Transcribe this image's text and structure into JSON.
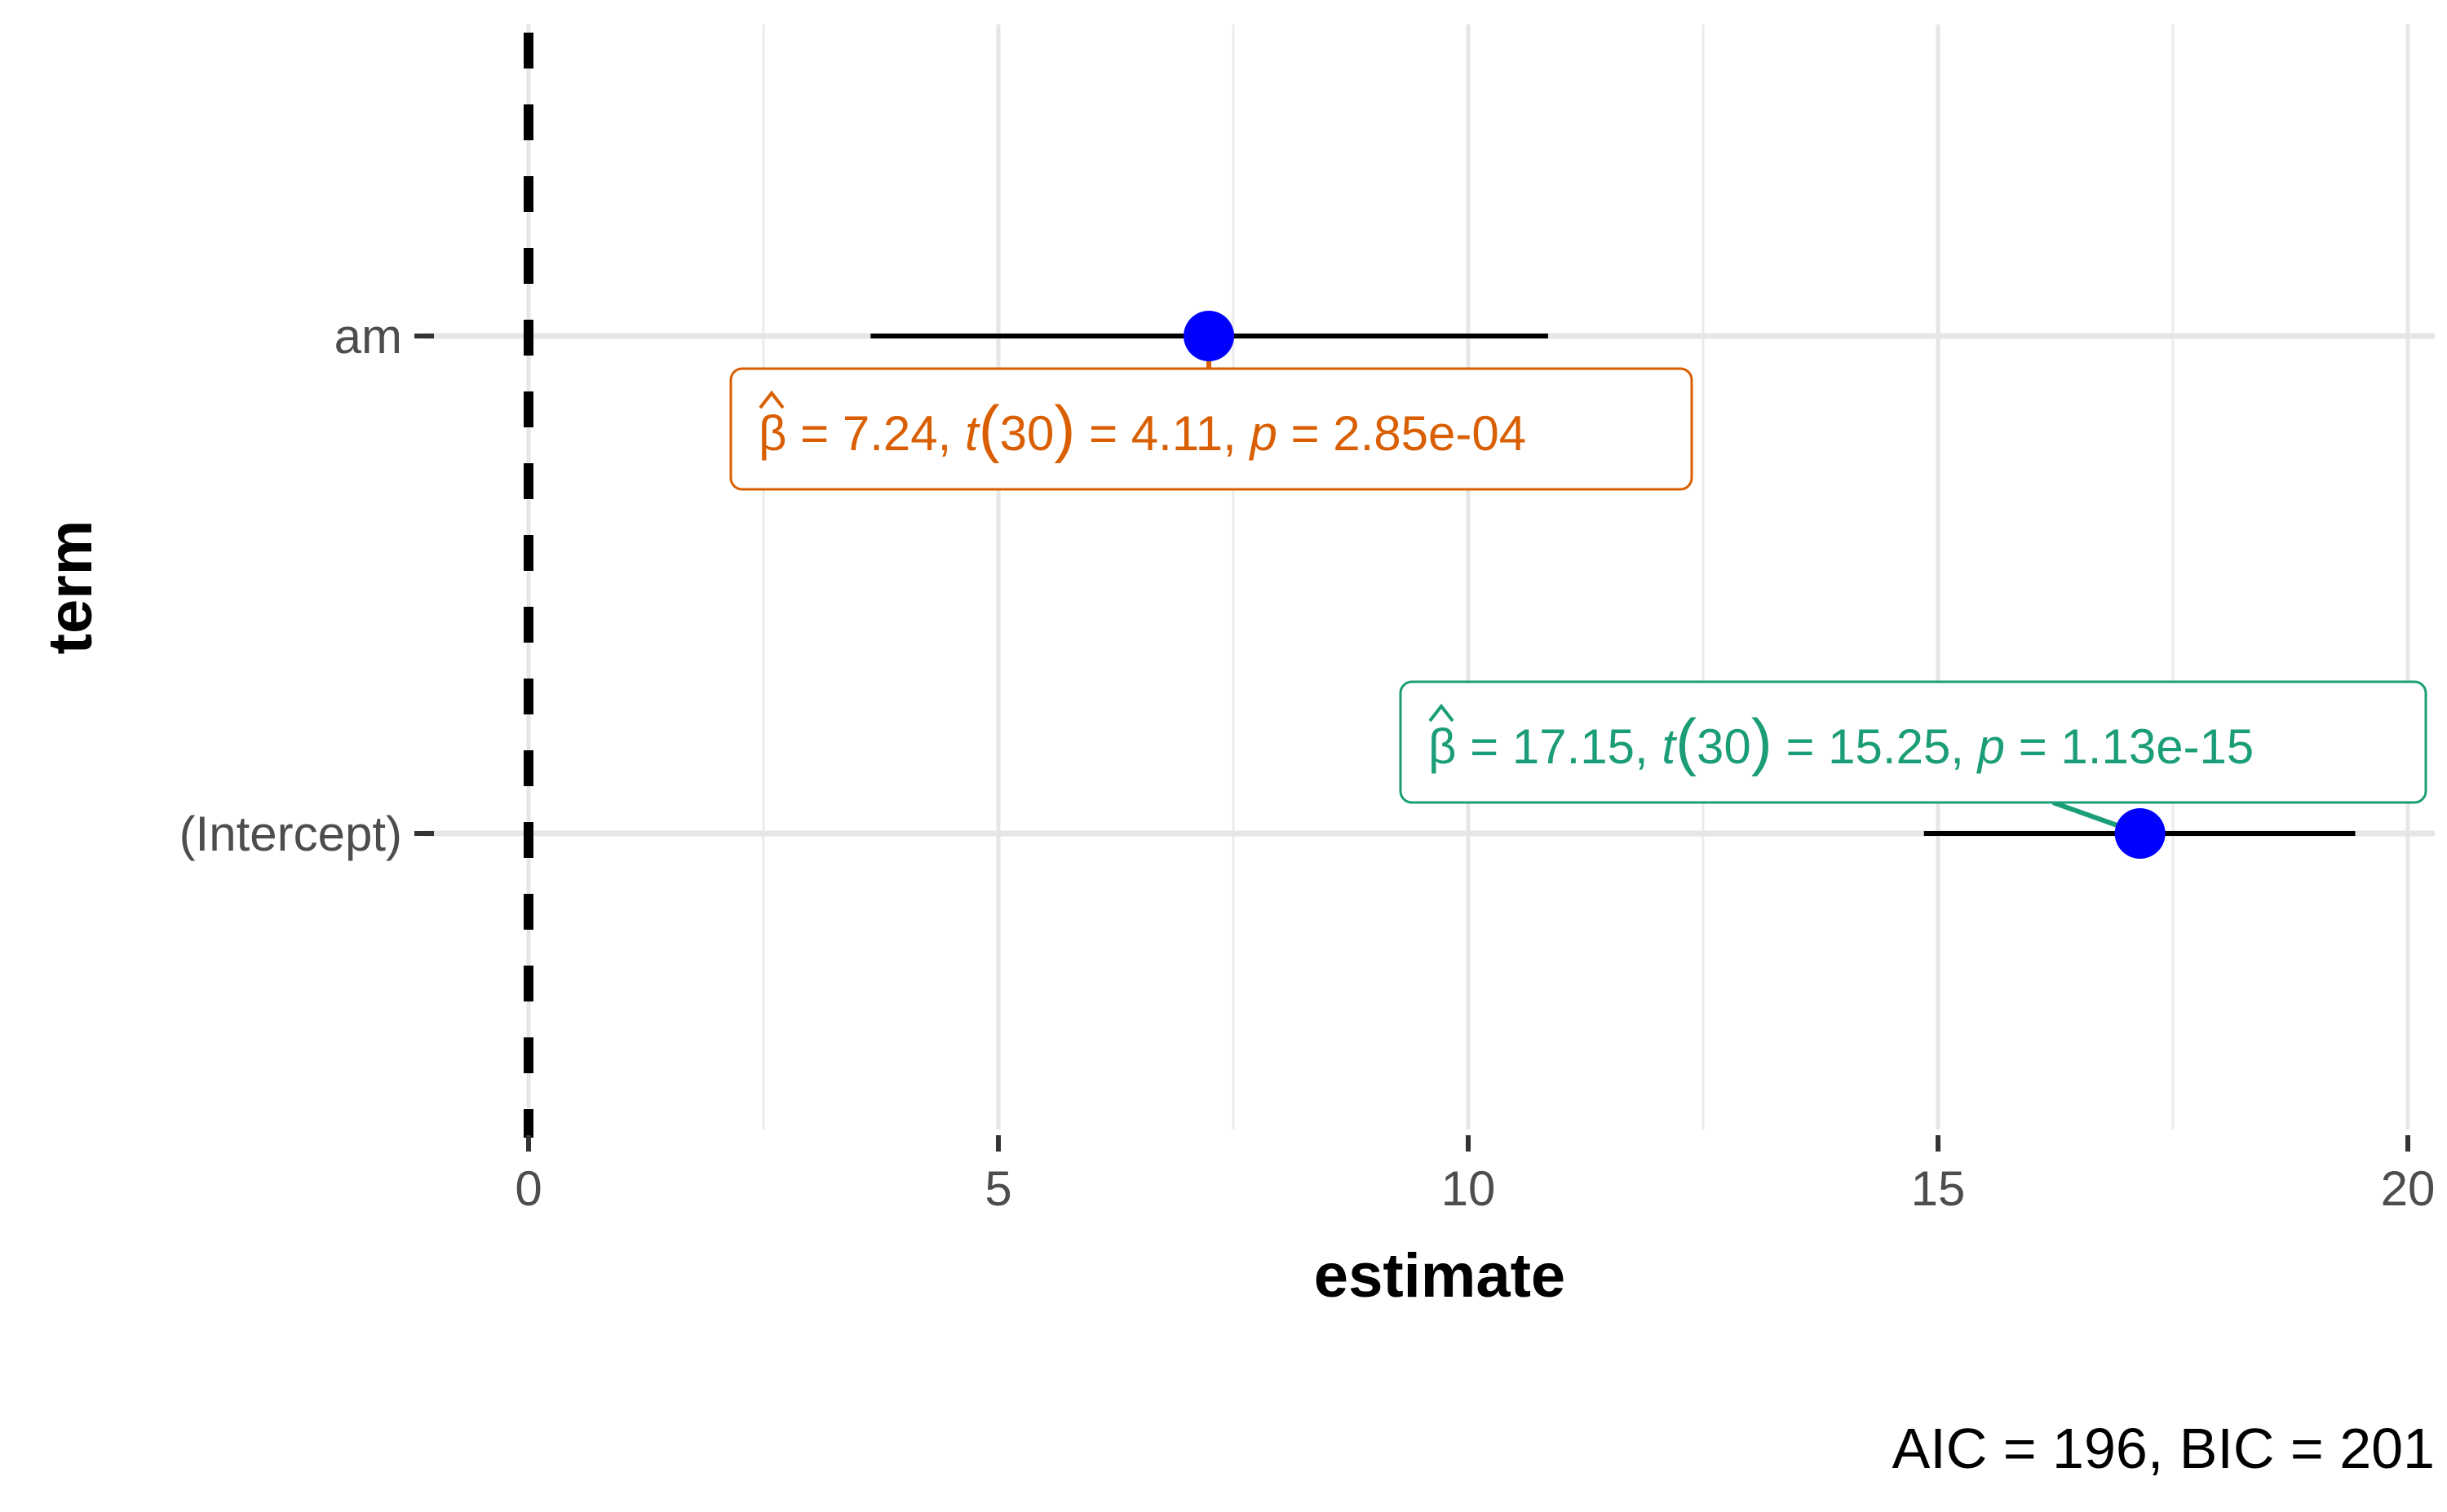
{
  "chart_data": {
    "type": "scatter",
    "subtype": "coefficient-plot",
    "xlabel": "estimate",
    "ylabel": "term",
    "xlim": [
      -1.2,
      20.5
    ],
    "xticks": [
      0,
      5,
      10,
      15,
      20
    ],
    "xtick_labels": [
      "0",
      "5",
      "10",
      "15",
      "20"
    ],
    "categories": [
      "(Intercept)",
      "am"
    ],
    "reference_line": {
      "x": 0,
      "style": "dashed",
      "color": "#000000"
    },
    "points": [
      {
        "term": "am",
        "estimate": 7.24,
        "conf_low": 3.64,
        "conf_high": 10.85,
        "label": {
          "beta": "7.24",
          "df": "30",
          "t": "4.11",
          "p": "2.85e-04",
          "color": "#D95F02",
          "position": "below"
        }
      },
      {
        "term": "(Intercept)",
        "estimate": 17.15,
        "conf_low": 14.85,
        "conf_high": 19.44,
        "label": {
          "beta": "17.15",
          "df": "30",
          "t": "15.25",
          "p": "1.13e-15",
          "color": "#1B9E77",
          "position": "above"
        }
      }
    ],
    "point_color": "#0000FF",
    "grid": true,
    "legend": "none",
    "caption": "AIC = 196, BIC = 201"
  }
}
